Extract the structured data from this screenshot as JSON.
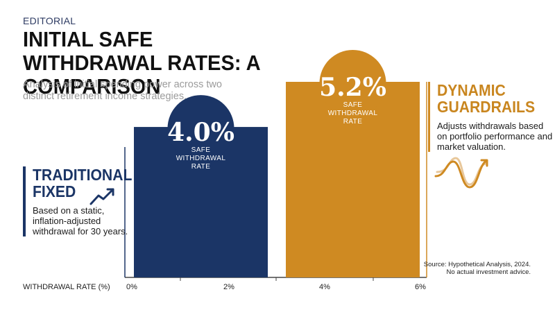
{
  "kicker": "EDITORIAL",
  "title": "INITIAL SAFE WITHDRAWAL RATES: A COMPARISON",
  "subtitle": "Analysis of initial spending power across two distinct retirement income strategies.",
  "strategies": {
    "traditional": {
      "title": "TRADITIONAL FIXED",
      "description": "Based on a static, inflation-adjusted withdrawal for 30 years."
    },
    "dynamic": {
      "title": "DYNAMIC GUARDRAILS",
      "description": "Adjusts withdrawals based on portfolio performance and market valuation."
    }
  },
  "source": {
    "line1": "Source: Hypothetical Analysis, 2024.",
    "line2": "No actual investment advice."
  },
  "colors": {
    "navy": "#1b3566",
    "gold": "#cf8a22"
  },
  "chart_data": {
    "type": "bar",
    "categories": [
      "TRADITIONAL FIXED",
      "DYNAMIC GUARDRAILS"
    ],
    "values": [
      4.0,
      5.2
    ],
    "value_labels": [
      "4.0%",
      "5.2%"
    ],
    "bar_sublabel": [
      "SAFE",
      "WITHDRAWAL",
      "RATE"
    ],
    "xlabel": "WITHDRAWAL RATE (%)",
    "ticks": [
      "0%",
      "2%",
      "4%",
      "6%"
    ],
    "ylim": [
      0,
      6
    ],
    "colors": [
      "#1b3566",
      "#cf8a22"
    ]
  }
}
